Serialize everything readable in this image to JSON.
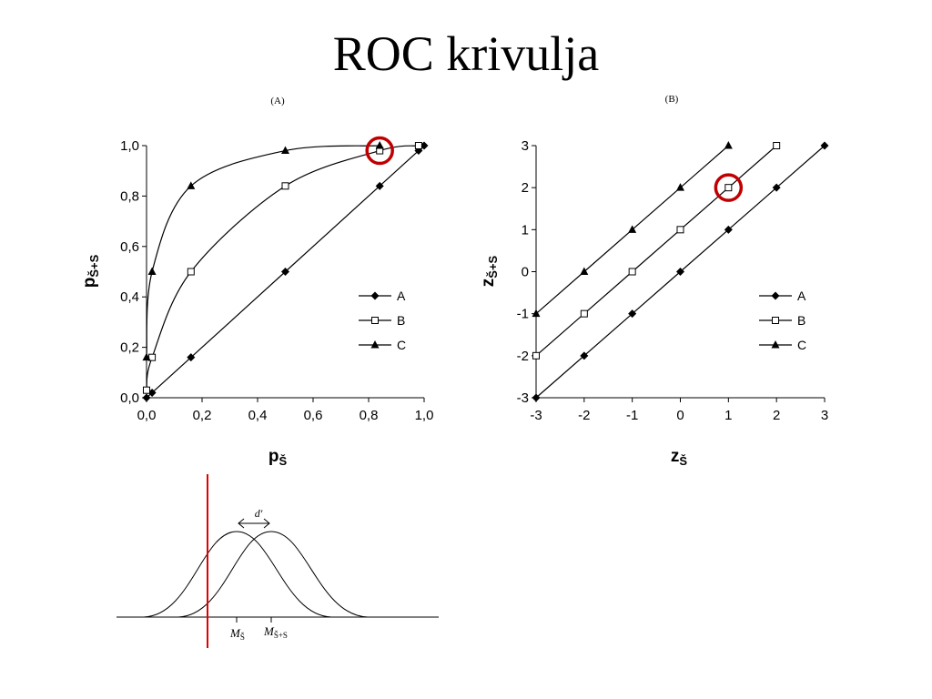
{
  "title": "ROC krivulja",
  "chart_data": [
    {
      "type": "line",
      "panel_label": "(A)",
      "xlabel_main": "p",
      "xlabel_sub": "Š",
      "ylabel_main": "p",
      "ylabel_sub": "Š+S",
      "xlim": [
        0,
        1
      ],
      "ylim": [
        0,
        1
      ],
      "x_ticks": [
        "0,0",
        "0,2",
        "0,4",
        "0,6",
        "0,8",
        "1,0"
      ],
      "y_ticks": [
        "0,0",
        "0,2",
        "0,4",
        "0,6",
        "0,8",
        "1,0"
      ],
      "grid": false,
      "legend_position": "lower-right",
      "highlight": {
        "x": 0.84,
        "y": 0.98,
        "color": "#c00000"
      },
      "series": [
        {
          "name": "A",
          "marker": "diamond-filled",
          "points": [
            [
              0.0,
              0.0
            ],
            [
              0.02,
              0.02
            ],
            [
              0.16,
              0.16
            ],
            [
              0.5,
              0.5
            ],
            [
              0.84,
              0.84
            ],
            [
              0.98,
              0.98
            ],
            [
              1.0,
              1.0
            ]
          ]
        },
        {
          "name": "B",
          "marker": "square-open",
          "points": [
            [
              0.0,
              0.03
            ],
            [
              0.02,
              0.16
            ],
            [
              0.16,
              0.5
            ],
            [
              0.5,
              0.84
            ],
            [
              0.84,
              0.98
            ],
            [
              0.98,
              1.0
            ]
          ]
        },
        {
          "name": "C",
          "marker": "triangle-filled",
          "points": [
            [
              0.0,
              0.16
            ],
            [
              0.02,
              0.5
            ],
            [
              0.16,
              0.84
            ],
            [
              0.5,
              0.98
            ],
            [
              0.84,
              1.0
            ]
          ]
        }
      ]
    },
    {
      "type": "line",
      "panel_label": "(B)",
      "xlabel_main": "z",
      "xlabel_sub": "Š",
      "ylabel_main": "z",
      "ylabel_sub": "Š+S",
      "xlim": [
        -3,
        3
      ],
      "ylim": [
        -3,
        3
      ],
      "x_ticks": [
        "-3",
        "-2",
        "-1",
        "0",
        "1",
        "2",
        "3"
      ],
      "y_ticks": [
        "-3",
        "-2",
        "-1",
        "0",
        "1",
        "2",
        "3"
      ],
      "grid": false,
      "legend_position": "lower-right",
      "highlight": {
        "x": 1,
        "y": 2,
        "color": "#c00000"
      },
      "series": [
        {
          "name": "A",
          "marker": "diamond-filled",
          "points": [
            [
              -3,
              -3
            ],
            [
              -2,
              -2
            ],
            [
              -1,
              -1
            ],
            [
              0,
              0
            ],
            [
              1,
              1
            ],
            [
              2,
              2
            ],
            [
              3,
              3
            ]
          ]
        },
        {
          "name": "B",
          "marker": "square-open",
          "points": [
            [
              -3,
              -2
            ],
            [
              -2,
              -1
            ],
            [
              -1,
              0
            ],
            [
              0,
              1
            ],
            [
              1,
              2
            ],
            [
              2,
              3
            ]
          ]
        },
        {
          "name": "C",
          "marker": "triangle-filled",
          "points": [
            [
              -3,
              -1
            ],
            [
              -2,
              0
            ],
            [
              -1,
              1
            ],
            [
              0,
              2
            ],
            [
              1,
              3
            ]
          ]
        }
      ]
    }
  ],
  "diagram": {
    "d_prime_label": "d′",
    "mean_noise_main": "M",
    "mean_noise_sub": "Š",
    "mean_signal_main": "M",
    "mean_signal_sub": "Š+S",
    "criterion_color": "#e00000"
  }
}
